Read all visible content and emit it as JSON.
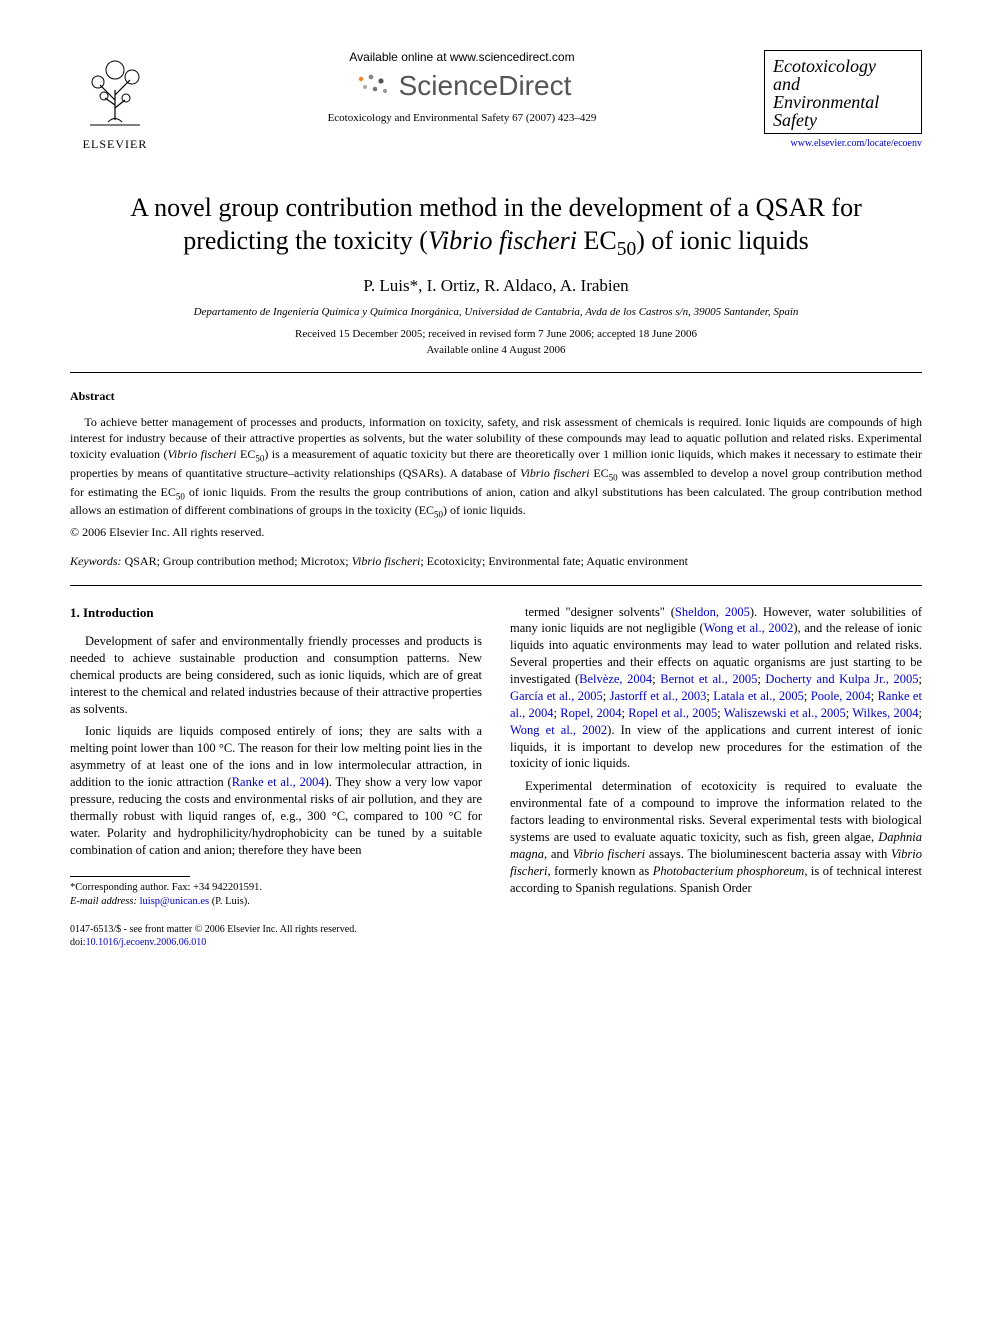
{
  "header": {
    "elsevier_label": "ELSEVIER",
    "available_online": "Available online at www.sciencedirect.com",
    "sciencedirect": "ScienceDirect",
    "citation": "Ecotoxicology and Environmental Safety 67 (2007) 423–429",
    "journal_name_line1": "Ecotoxicology",
    "journal_name_line2": "and",
    "journal_name_line3": "Environmental",
    "journal_name_line4": "Safety",
    "journal_url": "www.elsevier.com/locate/ecoenv"
  },
  "title_html": "A novel group contribution method in the development of a QSAR for predicting the toxicity (<em>Vibrio fischeri</em> EC<sub>50</sub>) of ionic liquids",
  "authors": "P. Luis*, I. Ortiz, R. Aldaco, A. Irabien",
  "affiliation": "Departamento de Ingeniería Química y Química Inorgánica, Universidad de Cantabria, Avda de los Castros s/n, 39005 Santander, Spain",
  "dates_line1": "Received 15 December 2005; received in revised form 7 June 2006; accepted 18 June 2006",
  "dates_line2": "Available online 4 August 2006",
  "abstract": {
    "label": "Abstract",
    "text_html": "To achieve better management of processes and products, information on toxicity, safety, and risk assessment of chemicals is required. Ionic liquids are compounds of high interest for industry because of their attractive properties as solvents, but the water solubility of these compounds may lead to aquatic pollution and related risks. Experimental toxicity evaluation (<em>Vibrio fischeri</em> EC<sub>50</sub>) is a measurement of aquatic toxicity but there are theoretically over 1 million ionic liquids, which makes it necessary to estimate their properties by means of quantitative structure–activity relationships (QSARs). A database of <em>Vibrio fischeri</em> EC<sub>50</sub> was assembled to develop a novel group contribution method for estimating the EC<sub>50</sub> of ionic liquids. From the results the group contributions of anion, cation and alkyl substitutions has been calculated. The group contribution method allows an estimation of different combinations of groups in the toxicity (EC<sub>50</sub>) of ionic liquids.",
    "copyright": "© 2006 Elsevier Inc. All rights reserved."
  },
  "keywords": {
    "label": "Keywords:",
    "text_html": "QSAR; Group contribution method; Microtox; <em>Vibrio fischeri</em>; Ecotoxicity; Environmental fate; Aquatic environment"
  },
  "body": {
    "intro_heading": "1. Introduction",
    "left_p1": "Development of safer and environmentally friendly processes and products is needed to achieve sustainable production and consumption patterns. New chemical products are being considered, such as ionic liquids, which are of great interest to the chemical and related industries because of their attractive properties as solvents.",
    "left_p2_html": "Ionic liquids are liquids composed entirely of ions; they are salts with a melting point lower than 100 °C. The reason for their low melting point lies in the asymmetry of at least one of the ions and in low intermolecular attraction, in addition to the ionic attraction (<span class=\"ref-link\">Ranke et al., 2004</span>). They show a very low vapor pressure, reducing the costs and environmental risks of air pollution, and they are thermally robust with liquid ranges of, e.g., 300 °C, compared to 100 °C for water. Polarity and hydrophilicity/hydrophobicity can be tuned by a suitable combination of cation and anion; therefore they have been",
    "right_p1_html": "termed \"designer solvents\" (<span class=\"ref-link\">Sheldon, 2005</span>). However, water solubilities of many ionic liquids are not negligible (<span class=\"ref-link\">Wong et al., 2002</span>), and the release of ionic liquids into aquatic environments may lead to water pollution and related risks. Several properties and their effects on aquatic organisms are just starting to be investigated (<span class=\"ref-link\">Belvèze, 2004</span>; <span class=\"ref-link\">Bernot et al., 2005</span>; <span class=\"ref-link\">Docherty and Kulpa Jr., 2005</span>; <span class=\"ref-link\">García et al., 2005</span>; <span class=\"ref-link\">Jastorff et al., 2003</span>; <span class=\"ref-link\">Latala et al., 2005</span>; <span class=\"ref-link\">Poole, 2004</span>; <span class=\"ref-link\">Ranke et al., 2004</span>; <span class=\"ref-link\">Ropel, 2004</span>; <span class=\"ref-link\">Ropel et al., 2005</span>; <span class=\"ref-link\">Waliszewski et al., 2005</span>; <span class=\"ref-link\">Wilkes, 2004</span>; <span class=\"ref-link\">Wong et al., 2002</span>). In view of the applications and current interest of ionic liquids, it is important to develop new procedures for the estimation of the toxicity of ionic liquids.",
    "right_p2_html": "Experimental determination of ecotoxicity is required to evaluate the environmental fate of a compound to improve the information related to the factors leading to environmental risks. Several experimental tests with biological systems are used to evaluate aquatic toxicity, such as fish, green algae, <em>Daphnia magna</em>, and <em>Vibrio fischeri</em> assays. The bioluminescent bacteria assay with <em>Vibrio fischeri</em>, formerly known as <em>Photobacterium phosphoreum</em>, is of technical interest according to Spanish regulations. Spanish Order"
  },
  "footnote": {
    "corr": "*Corresponding author. Fax: +34 942201591.",
    "email_label": "E-mail address:",
    "email": "luisp@unican.es",
    "email_who": "(P. Luis)."
  },
  "bottom": {
    "copyright": "0147-6513/$ - see front matter © 2006 Elsevier Inc. All rights reserved.",
    "doi_label": "doi:",
    "doi": "10.1016/j.ecoenv.2006.06.010"
  },
  "colors": {
    "text": "#000000",
    "link": "#0000cc",
    "background": "#ffffff",
    "elsevier_orange": "#f58220"
  }
}
